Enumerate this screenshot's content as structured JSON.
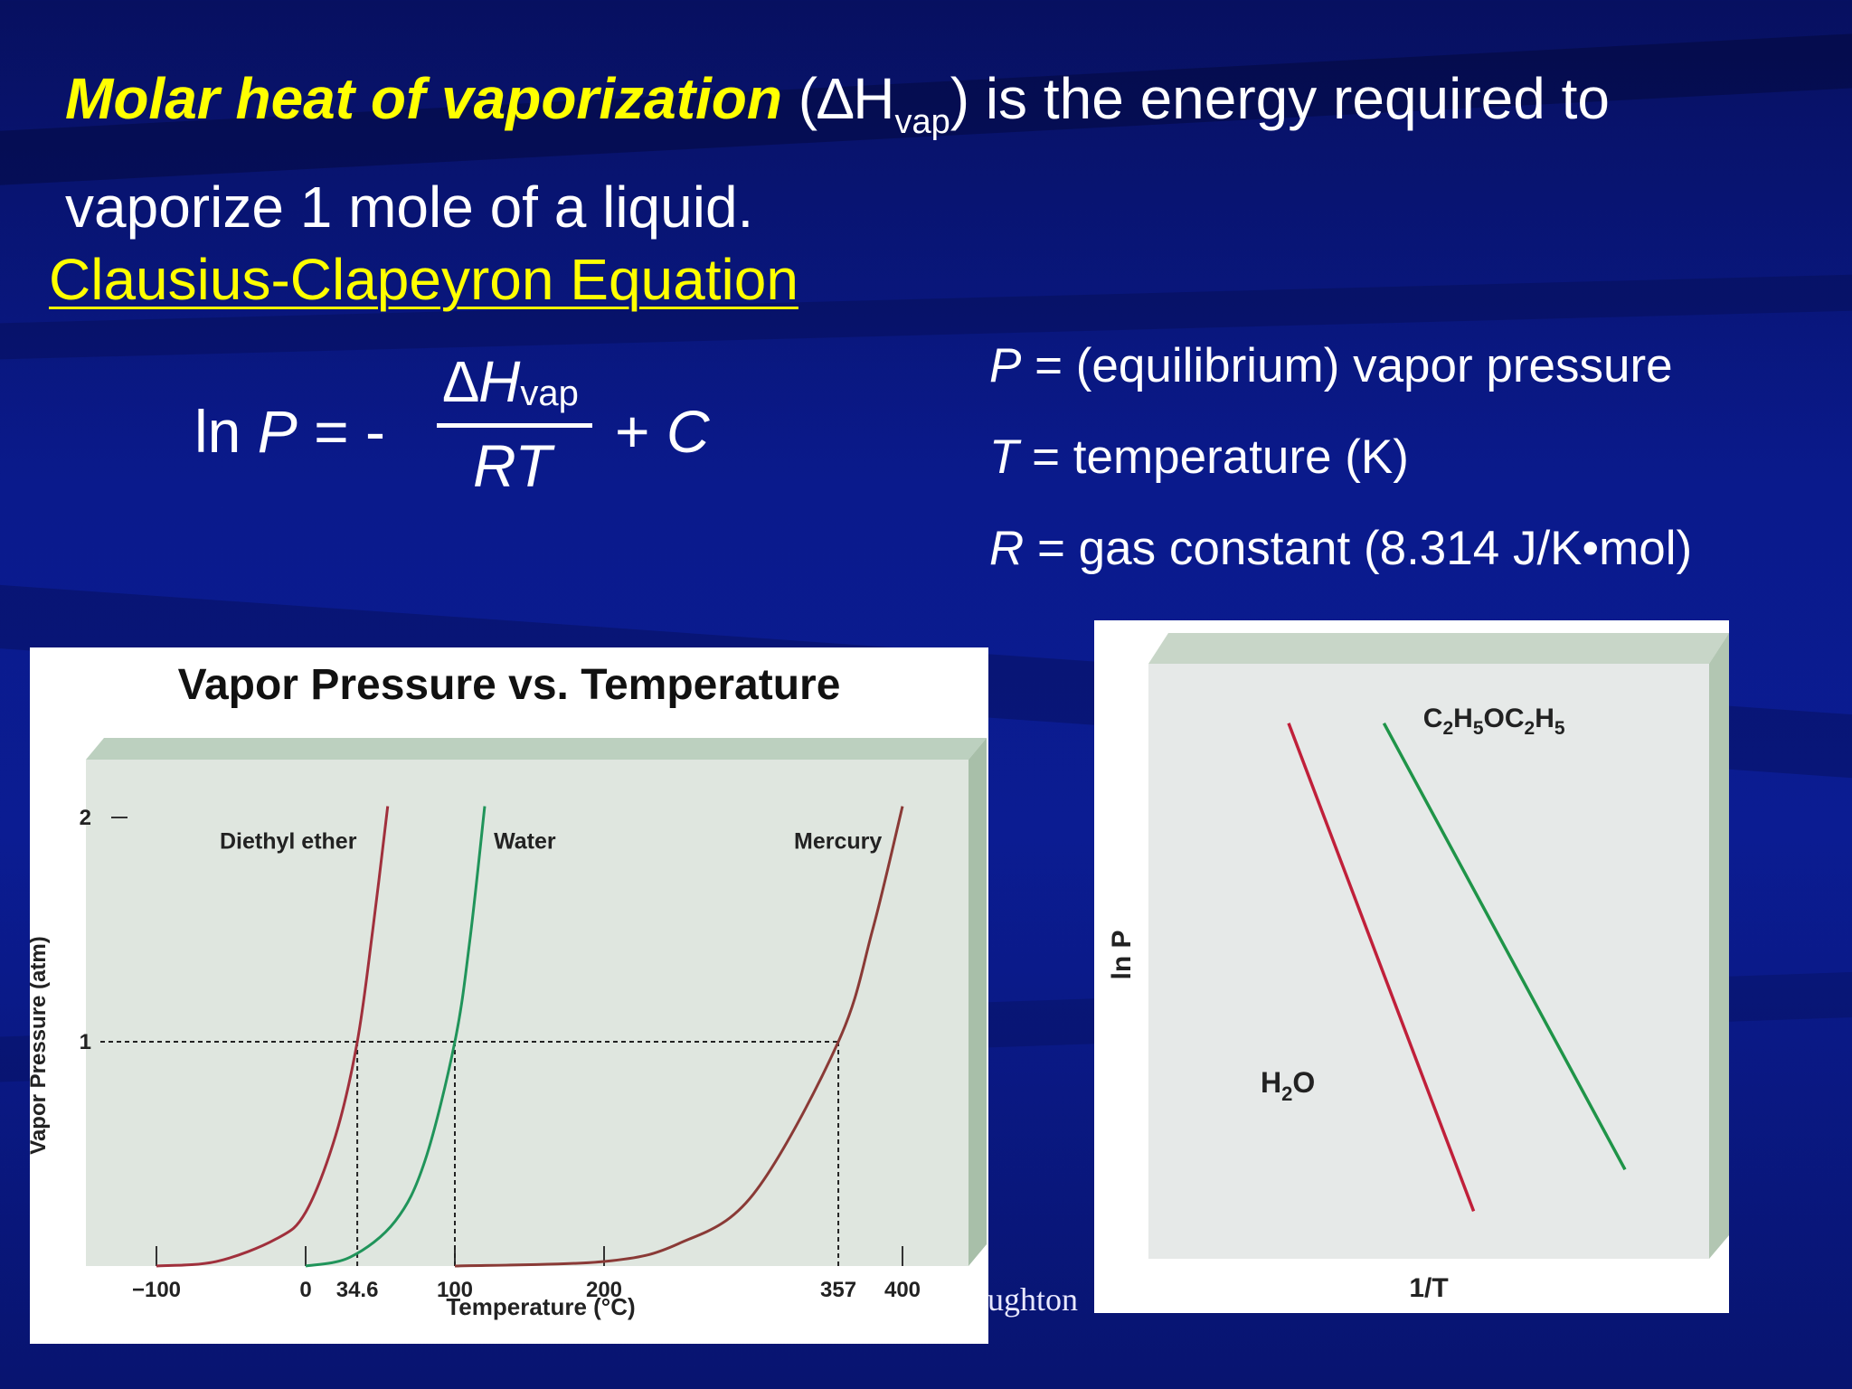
{
  "slide": {
    "intro_term": "Molar heat of vaporization",
    "intro_symbol_open": "(∆H",
    "intro_symbol_sub": "vap",
    "intro_symbol_close": ")",
    "intro_rest_line1": " is the energy required to",
    "intro_rest_line2": "vaporize 1 mole of a liquid.",
    "equation_title": "Clausius-Clapeyron Equation",
    "equation": {
      "lhs": "ln ",
      "lhs_var": "P",
      "lhs_tail": " = -",
      "numerator": "∆H",
      "numerator_sub": "vap",
      "denominator": "RT",
      "rhs": "+ ",
      "rhs_var": "C"
    },
    "definitions": [
      {
        "symbol": "P",
        "text": " = (equilibrium) vapor pressure"
      },
      {
        "symbol": "T",
        "text": " = temperature (K)"
      },
      {
        "symbol": "R",
        "text": " = gas constant (8.314 J/K•mol)"
      }
    ],
    "credit_fragment": "oughton"
  },
  "chart_data": [
    {
      "type": "line",
      "title": "Vapor Pressure vs. Temperature",
      "xlabel": "Temperature (°C)",
      "ylabel": "Vapor Pressure (atm)",
      "x_ticks": [
        "−100",
        "0",
        "34.6",
        "100",
        "200",
        "357",
        "400"
      ],
      "y_ticks": [
        "1",
        "2"
      ],
      "xlim": [
        -100,
        400
      ],
      "ylim": [
        0,
        2
      ],
      "reference_line_y": 1,
      "series": [
        {
          "name": "Diethyl ether",
          "color": "#a0303c",
          "x": [
            -100,
            -60,
            -20,
            0,
            20,
            34.6,
            45,
            55
          ],
          "y": [
            0.0,
            0.02,
            0.12,
            0.24,
            0.58,
            1.0,
            1.5,
            2.05
          ]
        },
        {
          "name": "Water",
          "color": "#20945a",
          "x": [
            0,
            30,
            60,
            80,
            100,
            110,
            120
          ],
          "y": [
            0.0,
            0.04,
            0.2,
            0.47,
            1.0,
            1.45,
            2.05
          ]
        },
        {
          "name": "Mercury",
          "color": "#8a3a36",
          "x": [
            100,
            200,
            250,
            300,
            357,
            380,
            400
          ],
          "y": [
            0.0,
            0.02,
            0.1,
            0.32,
            1.0,
            1.5,
            2.05
          ]
        }
      ]
    },
    {
      "type": "line",
      "title": "",
      "xlabel": "1/T",
      "ylabel": "ln P",
      "series": [
        {
          "name": "H2O",
          "label_main": "H",
          "label_sub": "2",
          "label_tail": "O",
          "color": "#c0203a",
          "x": [
            0.25,
            0.58
          ],
          "y": [
            0.9,
            0.08
          ]
        },
        {
          "name": "C2H5OC2H5",
          "label_parts": [
            "C",
            "2",
            "H",
            "5",
            "OC",
            "2",
            "H",
            "5"
          ],
          "color": "#1f9448",
          "x": [
            0.42,
            0.85
          ],
          "y": [
            0.9,
            0.15
          ]
        }
      ]
    }
  ]
}
